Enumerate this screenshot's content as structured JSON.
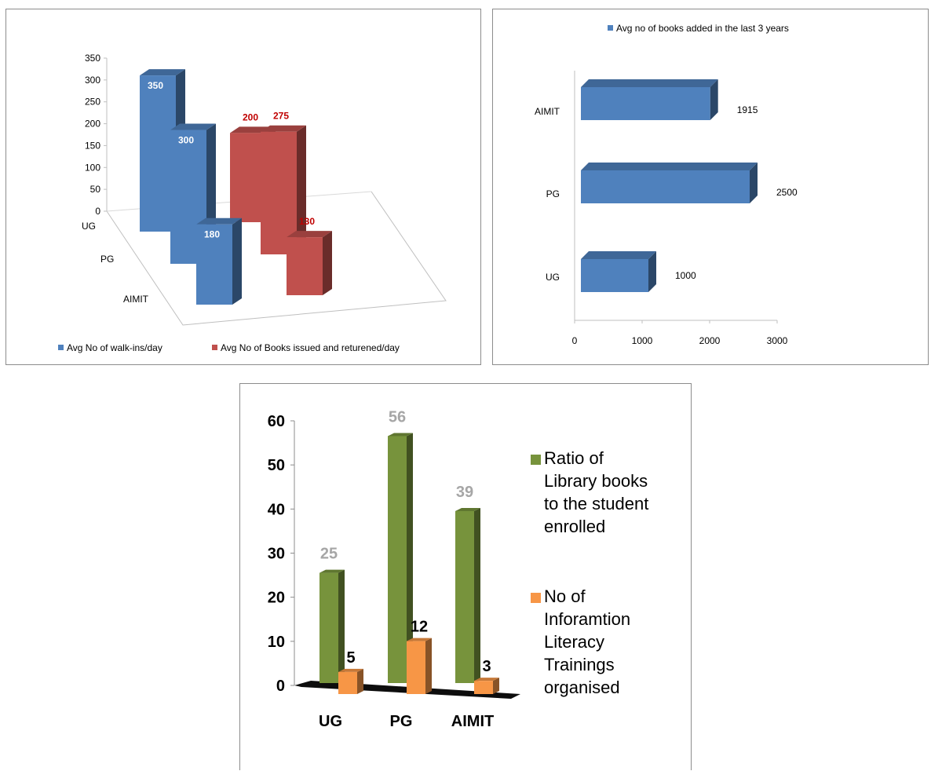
{
  "charts": [
    {
      "chart_data": {
        "type": "bar",
        "style": "3d-column-grouped-perspective",
        "categories": [
          "UG",
          "PG",
          "AIMIT"
        ],
        "series": [
          {
            "name": "Avg No of walk-ins/day",
            "values": [
              350,
              300,
              180
            ],
            "color": "#4f81bd",
            "label_color": "#ffffff"
          },
          {
            "name": "Avg No of Books issued and returened/day",
            "values": [
              200,
              275,
              130
            ],
            "color": "#c0504d",
            "label_color": "#c00000"
          }
        ],
        "y_ticks": [
          "0",
          "50",
          "100",
          "150",
          "200",
          "250",
          "300",
          "350"
        ],
        "ylim": [
          0,
          350
        ],
        "grid": false,
        "legend": "bottom"
      }
    },
    {
      "chart_data": {
        "type": "bar",
        "orientation": "horizontal",
        "style": "3d-bar",
        "categories": [
          "UG",
          "PG",
          "AIMIT"
        ],
        "series": [
          {
            "name": "Avg no of books added in the last 3 years",
            "values": [
              1000,
              2500,
              1915
            ],
            "color": "#4f81bd"
          }
        ],
        "x_ticks": [
          "0",
          "1000",
          "2000",
          "3000"
        ],
        "xlim": [
          0,
          3000
        ],
        "grid": false,
        "legend": "top"
      }
    },
    {
      "chart_data": {
        "type": "bar",
        "style": "3d-column",
        "categories": [
          "UG",
          "PG",
          "AIMIT"
        ],
        "series": [
          {
            "name": "Ratio of Library books to the student enrolled",
            "values": [
              25,
              56,
              39
            ],
            "color": "#77933c",
            "label_color": "#a6a6a6"
          },
          {
            "name": "No of Inforamtion Literacy Trainings organised",
            "values": [
              5,
              12,
              3
            ],
            "color": "#f79646",
            "label_color": "#000000"
          }
        ],
        "y_ticks": [
          "0",
          "10",
          "20",
          "30",
          "40",
          "50",
          "60"
        ],
        "ylim": [
          0,
          60
        ],
        "grid": false,
        "legend": "right"
      }
    }
  ],
  "legend3": {
    "ratio_lines": [
      "Ratio of",
      "Library books",
      "to the student",
      "enrolled"
    ],
    "trainings_lines": [
      "No  of",
      "Inforamtion",
      "Literacy",
      "Trainings",
      "organised"
    ]
  }
}
